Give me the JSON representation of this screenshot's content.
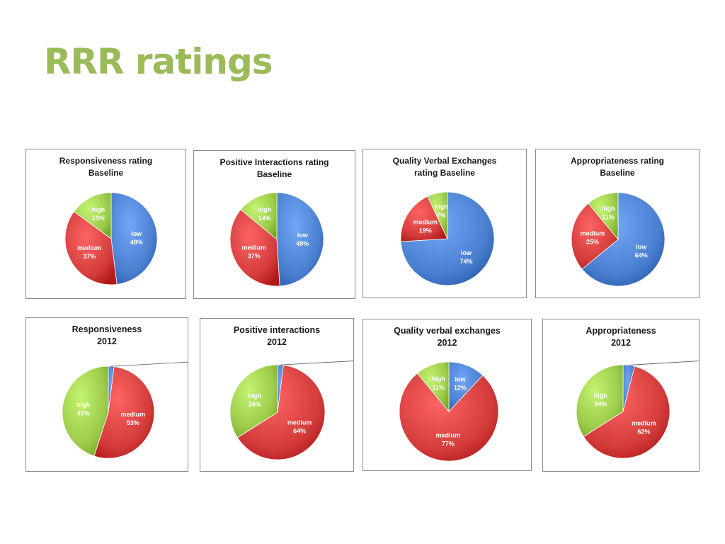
{
  "slide": {
    "title": "RRR ratings"
  },
  "colors": {
    "low": "#4a7fcf",
    "medium": "#d43c3c",
    "high": "#9bcb48",
    "title": "#9bbb59"
  },
  "chart_data": [
    {
      "type": "pie",
      "title": "Responsiveness rating\nBaseline",
      "slices": [
        {
          "label": "low",
          "value": 48
        },
        {
          "label": "medium",
          "value": 37
        },
        {
          "label": "high",
          "value": 15
        }
      ]
    },
    {
      "type": "pie",
      "title": "Positive Interactions rating\nBaseline",
      "slices": [
        {
          "label": "low",
          "value": 49
        },
        {
          "label": "medium",
          "value": 37
        },
        {
          "label": "high",
          "value": 14
        }
      ]
    },
    {
      "type": "pie",
      "title": "Quality Verbal Exchanges\nrating Baseline",
      "slices": [
        {
          "label": "low",
          "value": 74
        },
        {
          "label": "medium",
          "value": 19
        },
        {
          "label": "high",
          "value": 7
        }
      ]
    },
    {
      "type": "pie",
      "title": "Appropriateness rating\nBaseline",
      "slices": [
        {
          "label": "low",
          "value": 64
        },
        {
          "label": "medium",
          "value": 25
        },
        {
          "label": "high",
          "value": 11
        }
      ]
    },
    {
      "type": "pie",
      "title": "Responsiveness\n2012",
      "slices": [
        {
          "label": "low",
          "value": 2
        },
        {
          "label": "medium",
          "value": 53
        },
        {
          "label": "high",
          "value": 45
        }
      ]
    },
    {
      "type": "pie",
      "title": "Positive interactions\n2012",
      "slices": [
        {
          "label": "low",
          "value": 2
        },
        {
          "label": "medium",
          "value": 64
        },
        {
          "label": "high",
          "value": 34
        }
      ]
    },
    {
      "type": "pie",
      "title": "Quality verbal exchanges\n2012",
      "slices": [
        {
          "label": "low",
          "value": 12
        },
        {
          "label": "medium",
          "value": 77
        },
        {
          "label": "high",
          "value": 11
        }
      ]
    },
    {
      "type": "pie",
      "title": "Appropriateness\n2012",
      "slices": [
        {
          "label": "low",
          "value": 4
        },
        {
          "label": "medium",
          "value": 62
        },
        {
          "label": "high",
          "value": 34
        }
      ]
    }
  ]
}
